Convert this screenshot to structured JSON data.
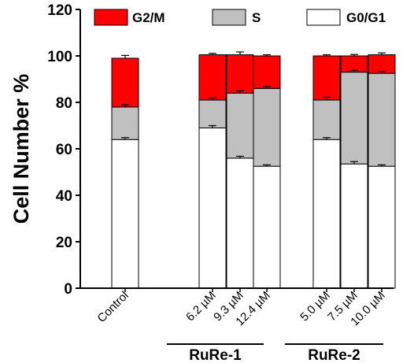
{
  "chart_data": {
    "type": "bar",
    "stacked": true,
    "ylabel": "Cell Number %",
    "ylim": [
      0,
      120
    ],
    "yticks": [
      0,
      20,
      40,
      60,
      80,
      100,
      120
    ],
    "grid": false,
    "legend_position": "top",
    "categories": [
      "Control",
      "6.2 µM",
      "9.3 µM",
      "12.4 µM",
      "5.0 µM",
      "7.5 µM",
      "10.0 µM"
    ],
    "groups": [
      {
        "label": "RuRe-1",
        "categories": [
          "6.2 µM",
          "9.3 µM",
          "12.4 µM"
        ]
      },
      {
        "label": "RuRe-2",
        "categories": [
          "5.0 µM",
          "7.5 µM",
          "10.0 µM"
        ]
      }
    ],
    "series": [
      {
        "name": "G0/G1",
        "color": "#ffffff",
        "values": [
          64,
          69,
          56,
          52.5,
          64,
          53.5,
          52.5
        ],
        "errors": [
          0.8,
          1.0,
          0.8,
          0.6,
          0.8,
          1.0,
          0.6
        ]
      },
      {
        "name": "S",
        "color": "#c0c0c0",
        "values": [
          14,
          12,
          28,
          33.5,
          17,
          39.5,
          40
        ],
        "errors": [
          1.0,
          1.0,
          1.0,
          0.8,
          1.2,
          0.8,
          0.8
        ]
      },
      {
        "name": "G2/M",
        "color": "#ff0000",
        "values": [
          21,
          19.5,
          16.5,
          14,
          19,
          7,
          8
        ],
        "errors": [
          1.2,
          0.6,
          1.2,
          0.5,
          0.5,
          0.6,
          0.8
        ]
      }
    ]
  }
}
